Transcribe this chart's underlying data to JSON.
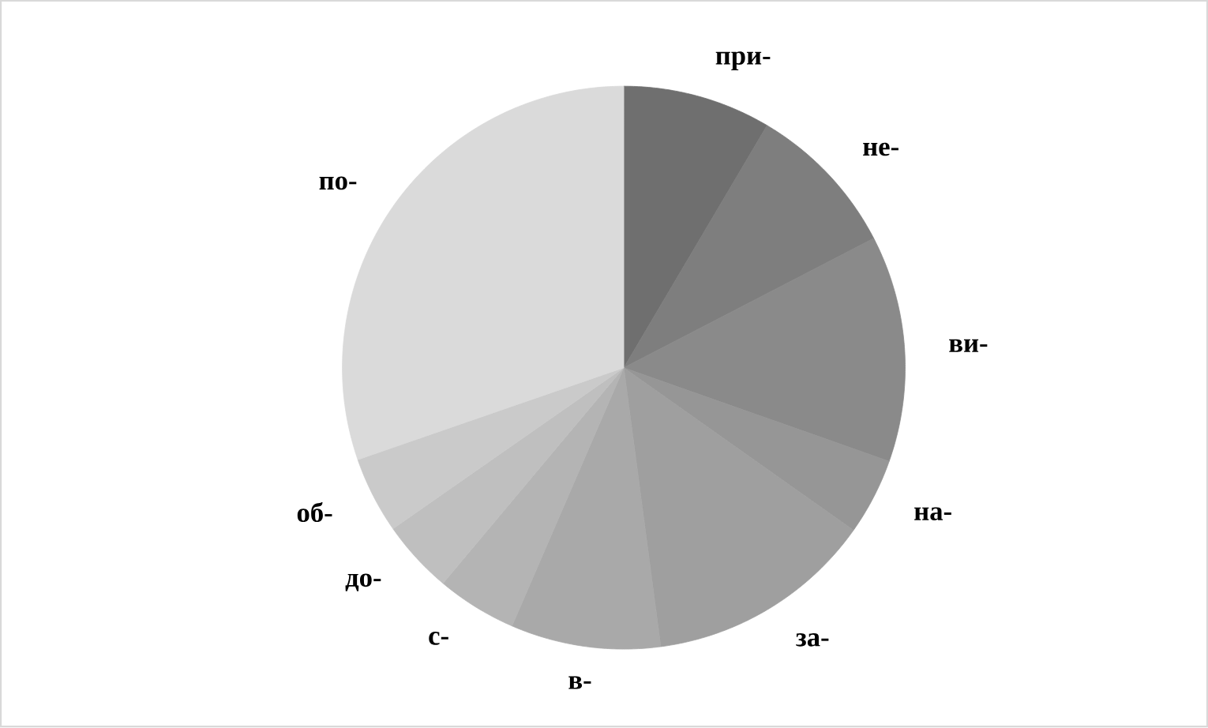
{
  "chart_data": {
    "type": "pie",
    "categories": [
      "при-",
      "не-",
      "ви-",
      "на-",
      "за-",
      "в-",
      "с-",
      "до-",
      "об-",
      "по-"
    ],
    "values": [
      8.5,
      8.9,
      13.0,
      4.4,
      13.1,
      8.6,
      4.6,
      4.2,
      4.4,
      30.3
    ],
    "colors": [
      "#6f6f6f",
      "#7e7e7e",
      "#8a8a8a",
      "#969696",
      "#9f9f9f",
      "#a9a9a9",
      "#b4b4b4",
      "#bfbfbf",
      "#cacaca",
      "#dadada"
    ]
  }
}
